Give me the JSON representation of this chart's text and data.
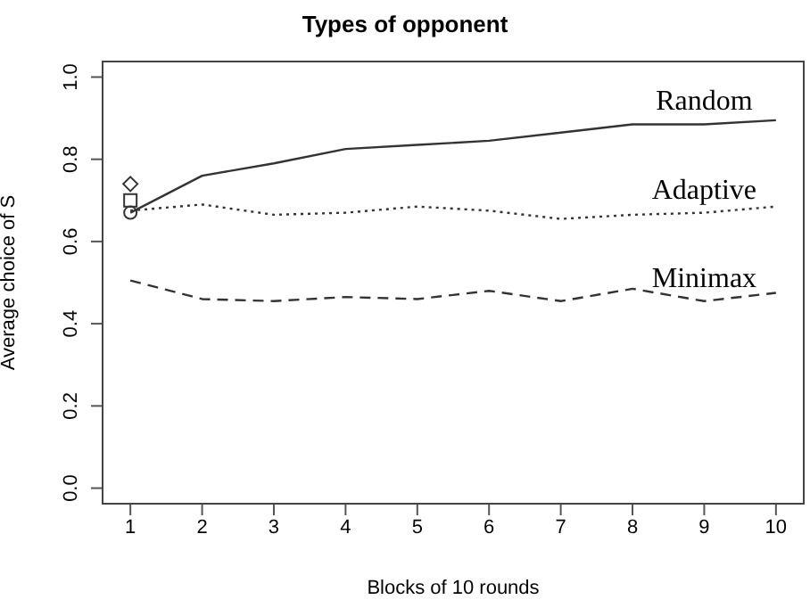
{
  "chart_data": {
    "type": "line",
    "title": "Types of opponent",
    "xlabel": "Blocks of 10 rounds",
    "ylabel": "Average choice of S",
    "x": [
      1,
      2,
      3,
      4,
      5,
      6,
      7,
      8,
      9,
      10
    ],
    "series": [
      {
        "name": "Random",
        "color": "#333333",
        "line_style": "solid",
        "values": [
          0.67,
          0.76,
          0.79,
          0.825,
          0.835,
          0.845,
          0.865,
          0.885,
          0.885,
          0.895
        ]
      },
      {
        "name": "Adaptive",
        "color": "#333333",
        "line_style": "dotted",
        "values": [
          0.675,
          0.69,
          0.665,
          0.67,
          0.685,
          0.675,
          0.655,
          0.665,
          0.67,
          0.685
        ]
      },
      {
        "name": "Minimax",
        "color": "#333333",
        "line_style": "dashed",
        "values": [
          0.505,
          0.46,
          0.455,
          0.465,
          0.46,
          0.48,
          0.455,
          0.485,
          0.455,
          0.475
        ]
      },
      {
        "type": "scatter",
        "color": "#333333",
        "marker": "diamond",
        "values": [
          0.74,
          null,
          null,
          null,
          null,
          null,
          null,
          null,
          null,
          null
        ]
      },
      {
        "type": "scatter",
        "color": "#333333",
        "marker": "square",
        "values": [
          0.7,
          null,
          null,
          null,
          null,
          null,
          null,
          null,
          null,
          null
        ]
      },
      {
        "type": "scatter",
        "color": "#333333",
        "marker": "circle",
        "values": [
          0.67,
          null,
          null,
          null,
          null,
          null,
          null,
          null,
          null,
          null
        ]
      }
    ],
    "xlim": [
      0.6,
      10.4
    ],
    "xticks": [
      1,
      2,
      3,
      4,
      5,
      6,
      7,
      8,
      9,
      10
    ],
    "ylim": [
      -0.04,
      1.04
    ],
    "yticks": [
      {
        "value": 0,
        "label": "0.0"
      },
      {
        "value": 0.2,
        "label": "0.2"
      },
      {
        "value": 0.4,
        "label": "0.4"
      },
      {
        "value": 0.6,
        "label": "0.6"
      },
      {
        "value": 0.8,
        "label": "0.8"
      },
      {
        "value": 1,
        "label": "1.0"
      }
    ],
    "grid": false,
    "legend": false
  }
}
